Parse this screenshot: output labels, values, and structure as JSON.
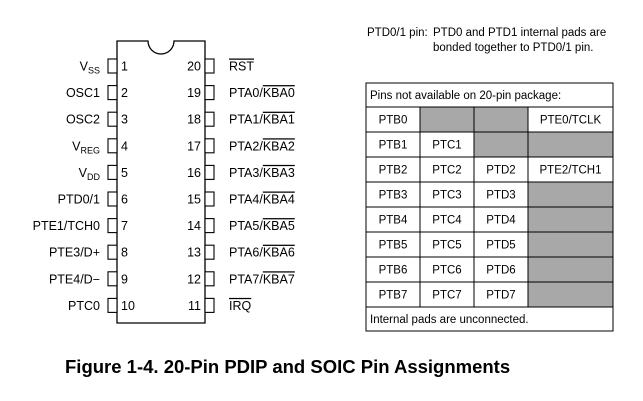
{
  "ptd_note": {
    "label": "PTD0/1 pin:",
    "line1": "PTD0 and PTD1 internal pads are",
    "line2": "bonded together to PTD0/1 pin."
  },
  "left_pins": [
    {
      "num": "1",
      "name": "V",
      "sub": "SS",
      "overbar": false
    },
    {
      "num": "2",
      "name": "OSC1",
      "sub": "",
      "overbar": false
    },
    {
      "num": "3",
      "name": "OSC2",
      "sub": "",
      "overbar": false
    },
    {
      "num": "4",
      "name": "V",
      "sub": "REG",
      "overbar": false
    },
    {
      "num": "5",
      "name": "V",
      "sub": "DD",
      "overbar": false
    },
    {
      "num": "6",
      "name": "PTD0/1",
      "sub": "",
      "overbar": false
    },
    {
      "num": "7",
      "name": "PTE1/TCH0",
      "sub": "",
      "overbar": false
    },
    {
      "num": "8",
      "name": "PTE3/D+",
      "sub": "",
      "overbar": false
    },
    {
      "num": "9",
      "name": "PTE4/D−",
      "sub": "",
      "overbar": false
    },
    {
      "num": "10",
      "name": "PTC0",
      "sub": "",
      "overbar": false
    }
  ],
  "right_pins": [
    {
      "num": "20",
      "prefix": "",
      "over": "RST"
    },
    {
      "num": "19",
      "prefix": "PTA0/",
      "over": "KBA0"
    },
    {
      "num": "18",
      "prefix": "PTA1/",
      "over": "KBA1"
    },
    {
      "num": "17",
      "prefix": "PTA2/",
      "over": "KBA2"
    },
    {
      "num": "16",
      "prefix": "PTA3/",
      "over": "KBA3"
    },
    {
      "num": "15",
      "prefix": "PTA4/",
      "over": "KBA4"
    },
    {
      "num": "14",
      "prefix": "PTA5/",
      "over": "KBA5"
    },
    {
      "num": "13",
      "prefix": "PTA6/",
      "over": "KBA6"
    },
    {
      "num": "12",
      "prefix": "PTA7/",
      "over": "KBA7"
    },
    {
      "num": "11",
      "prefix": "",
      "over": "IRQ"
    }
  ],
  "table": {
    "header": "Pins not available on 20-pin package:",
    "rows": [
      [
        "PTB0",
        null,
        null,
        "PTE0/TCLK"
      ],
      [
        "PTB1",
        "PTC1",
        null,
        null
      ],
      [
        "PTB2",
        "PTC2",
        "PTD2",
        "PTE2/TCH1"
      ],
      [
        "PTB3",
        "PTC3",
        "PTD3",
        null
      ],
      [
        "PTB4",
        "PTC4",
        "PTD4",
        null
      ],
      [
        "PTB5",
        "PTC5",
        "PTD5",
        null
      ],
      [
        "PTB6",
        "PTC6",
        "PTD6",
        null
      ],
      [
        "PTB7",
        "PTC7",
        "PTD7",
        null
      ]
    ],
    "footer": "Internal pads are unconnected."
  },
  "caption": "Figure 1-4. 20-Pin PDIP and SOIC Pin Assignments",
  "colors": {
    "shade": "#a8a8a8",
    "line": "#000000"
  }
}
